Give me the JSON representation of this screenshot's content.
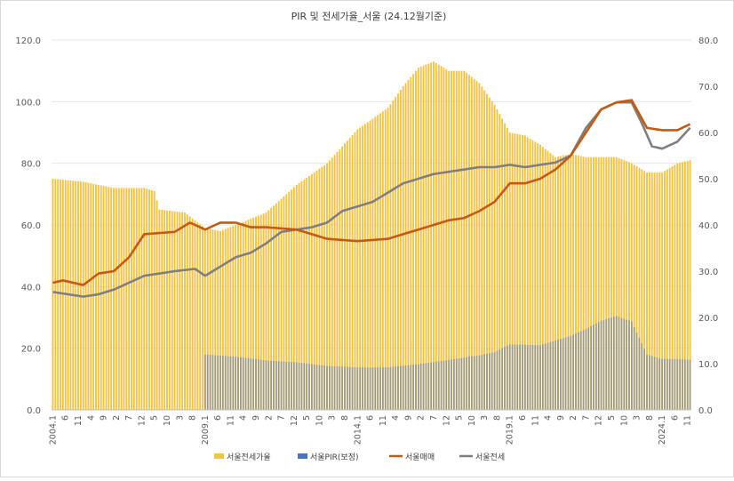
{
  "chart_data": {
    "type": "bar+line",
    "title": "PIR 및 전세가율_서울 (24.12월기준)",
    "xlabel": "",
    "ylabel": "",
    "ylim_left": [
      0,
      120
    ],
    "ylim_right": [
      0,
      80
    ],
    "y_ticks_left": [
      "0.0",
      "20.0",
      "40.0",
      "60.0",
      "80.0",
      "100.0",
      "120.0"
    ],
    "y_ticks_right": [
      "0.0",
      "10.0",
      "20.0",
      "30.0",
      "40.0",
      "50.0",
      "60.0",
      "70.0",
      "80.0"
    ],
    "x_tick_labels": [
      "2004.1",
      "6",
      "11",
      "4",
      "9",
      "2",
      "7",
      "12",
      "5",
      "10",
      "3",
      "8",
      "2009.1",
      "6",
      "11",
      "4",
      "9",
      "2",
      "7",
      "12",
      "5",
      "10",
      "3",
      "8",
      "2014.1",
      "6",
      "11",
      "4",
      "9",
      "2",
      "7",
      "12",
      "5",
      "10",
      "3",
      "8",
      "2019.1",
      "6",
      "11",
      "4",
      "9",
      "2",
      "7",
      "12",
      "5",
      "10",
      "3",
      "8",
      "2024.1",
      "6",
      "11"
    ],
    "x_range": [
      "2004.1",
      "2024.12"
    ],
    "grid": true,
    "legend_position": "bottom",
    "colors": {
      "jeonse_ratio": "#F5C242",
      "pir": "#4472C4",
      "sale": "#C55A11",
      "jeonse": "#7F7F7F"
    },
    "series": [
      {
        "name": "서울전세가율",
        "type": "bar",
        "axis": "left",
        "keypoints": [
          [
            0,
            75
          ],
          [
            12,
            74
          ],
          [
            24,
            72
          ],
          [
            36,
            72
          ],
          [
            40,
            71
          ],
          [
            42,
            65
          ],
          [
            52,
            64
          ],
          [
            60,
            59
          ],
          [
            66,
            58
          ],
          [
            72,
            60
          ],
          [
            84,
            64
          ],
          [
            96,
            73
          ],
          [
            108,
            80
          ],
          [
            120,
            91
          ],
          [
            132,
            98
          ],
          [
            138,
            105
          ],
          [
            144,
            111
          ],
          [
            150,
            113
          ],
          [
            156,
            110
          ],
          [
            162,
            110
          ],
          [
            168,
            106
          ],
          [
            174,
            99
          ],
          [
            180,
            90
          ],
          [
            186,
            89
          ],
          [
            192,
            86
          ],
          [
            198,
            82
          ],
          [
            204,
            83
          ],
          [
            210,
            82
          ],
          [
            216,
            82
          ],
          [
            222,
            82
          ],
          [
            228,
            80
          ],
          [
            234,
            77
          ],
          [
            240,
            77
          ],
          [
            246,
            80
          ],
          [
            251,
            81
          ]
        ]
      },
      {
        "name": "서울PIR(보정)",
        "type": "bar",
        "axis": "right",
        "start_index": 60,
        "keypoints": [
          [
            60,
            12
          ],
          [
            72,
            11.5
          ],
          [
            84,
            10.7
          ],
          [
            96,
            10.3
          ],
          [
            108,
            9.5
          ],
          [
            120,
            9.2
          ],
          [
            132,
            9.2
          ],
          [
            144,
            9.9
          ],
          [
            156,
            10.8
          ],
          [
            168,
            11.8
          ],
          [
            174,
            12.5
          ],
          [
            180,
            14.2
          ],
          [
            192,
            14
          ],
          [
            204,
            16
          ],
          [
            210,
            17.5
          ],
          [
            216,
            19.3
          ],
          [
            222,
            20.3
          ],
          [
            228,
            19.1
          ],
          [
            234,
            12
          ],
          [
            240,
            11
          ],
          [
            246,
            11
          ],
          [
            251,
            10.8
          ]
        ]
      },
      {
        "name": "서울매매",
        "type": "line",
        "axis": "right",
        "keypoints": [
          [
            0,
            27.5
          ],
          [
            4,
            28
          ],
          [
            12,
            27
          ],
          [
            18,
            29.5
          ],
          [
            24,
            30
          ],
          [
            30,
            33
          ],
          [
            36,
            38
          ],
          [
            48,
            38.5
          ],
          [
            54,
            40.5
          ],
          [
            60,
            39
          ],
          [
            66,
            40.5
          ],
          [
            72,
            40.5
          ],
          [
            78,
            39.5
          ],
          [
            84,
            39.5
          ],
          [
            96,
            39
          ],
          [
            108,
            37
          ],
          [
            120,
            36.5
          ],
          [
            132,
            37
          ],
          [
            144,
            39
          ],
          [
            156,
            41
          ],
          [
            162,
            41.5
          ],
          [
            168,
            43
          ],
          [
            174,
            45
          ],
          [
            180,
            49
          ],
          [
            186,
            49
          ],
          [
            192,
            50
          ],
          [
            198,
            52
          ],
          [
            204,
            55
          ],
          [
            210,
            60
          ],
          [
            216,
            65
          ],
          [
            222,
            66.5
          ],
          [
            228,
            67
          ],
          [
            234,
            61
          ],
          [
            240,
            60.5
          ],
          [
            246,
            60.5
          ],
          [
            251,
            61.8
          ]
        ]
      },
      {
        "name": "서울전세",
        "type": "line",
        "axis": "right",
        "keypoints": [
          [
            0,
            25.5
          ],
          [
            6,
            25
          ],
          [
            12,
            24.5
          ],
          [
            18,
            25
          ],
          [
            24,
            26
          ],
          [
            30,
            27.5
          ],
          [
            36,
            29
          ],
          [
            48,
            30
          ],
          [
            56,
            30.5
          ],
          [
            60,
            29
          ],
          [
            66,
            31
          ],
          [
            72,
            33
          ],
          [
            78,
            34
          ],
          [
            84,
            36
          ],
          [
            90,
            38.5
          ],
          [
            96,
            39
          ],
          [
            102,
            39.5
          ],
          [
            108,
            40.5
          ],
          [
            114,
            43
          ],
          [
            120,
            44
          ],
          [
            126,
            45
          ],
          [
            132,
            47
          ],
          [
            138,
            49
          ],
          [
            144,
            50
          ],
          [
            150,
            51
          ],
          [
            156,
            51.5
          ],
          [
            162,
            52
          ],
          [
            168,
            52.5
          ],
          [
            174,
            52.5
          ],
          [
            180,
            53
          ],
          [
            186,
            52.5
          ],
          [
            192,
            53
          ],
          [
            198,
            53.5
          ],
          [
            204,
            55
          ],
          [
            210,
            61
          ],
          [
            216,
            65
          ],
          [
            222,
            66.5
          ],
          [
            228,
            66.5
          ],
          [
            232,
            62
          ],
          [
            236,
            57
          ],
          [
            240,
            56.5
          ],
          [
            246,
            58
          ],
          [
            251,
            61
          ]
        ]
      }
    ]
  }
}
